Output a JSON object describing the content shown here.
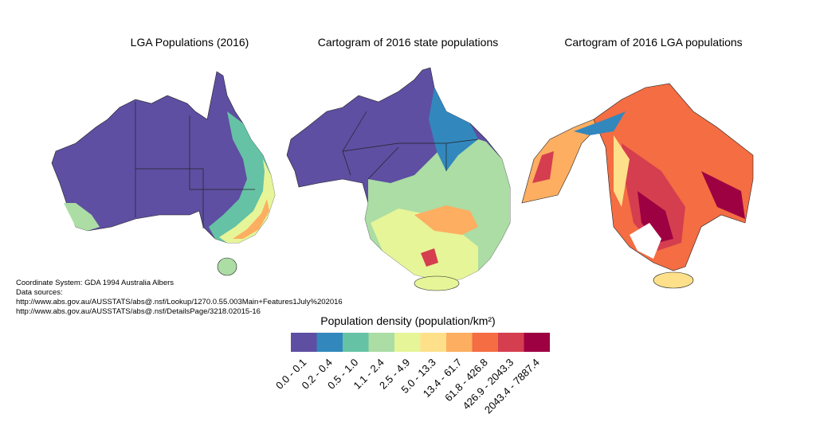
{
  "maps": [
    {
      "title": "LGA Populations (2016)"
    },
    {
      "title": "Cartogram of 2016 state populations"
    },
    {
      "title": "Cartogram of 2016 LGA populations"
    }
  ],
  "notes": {
    "coordinate_system": "Coordinate System: GDA 1994 Australia Albers",
    "sources_label": "Data sources:",
    "sources": [
      "http://www.abs.gov.au/AUSSTATS/abs@.nsf/Lookup/1270.0.55.003Main+Features1July%202016",
      "http://www.abs.gov.au/AUSSTATS/abs@.nsf/DetailsPage/3218.02015-16"
    ]
  },
  "legend": {
    "title": "Population density (population/km²)",
    "classes": [
      {
        "label": "0.0 - 0.1",
        "color": "#5e4fa2"
      },
      {
        "label": "0.2 - 0.4",
        "color": "#3288bd"
      },
      {
        "label": "0.5 - 1.0",
        "color": "#66c2a5"
      },
      {
        "label": "1.1 - 2.4",
        "color": "#abdda4"
      },
      {
        "label": "2.5 - 4.9",
        "color": "#e6f598"
      },
      {
        "label": "5.0 - 13.3",
        "color": "#fee08b"
      },
      {
        "label": "13.4 - 61.7",
        "color": "#fdae61"
      },
      {
        "label": "61.8 - 426.8",
        "color": "#f46d43"
      },
      {
        "label": "426.9 - 2043.3",
        "color": "#d53e4f"
      },
      {
        "label": "2043.4 - 7887.4",
        "color": "#9e0142"
      }
    ]
  }
}
